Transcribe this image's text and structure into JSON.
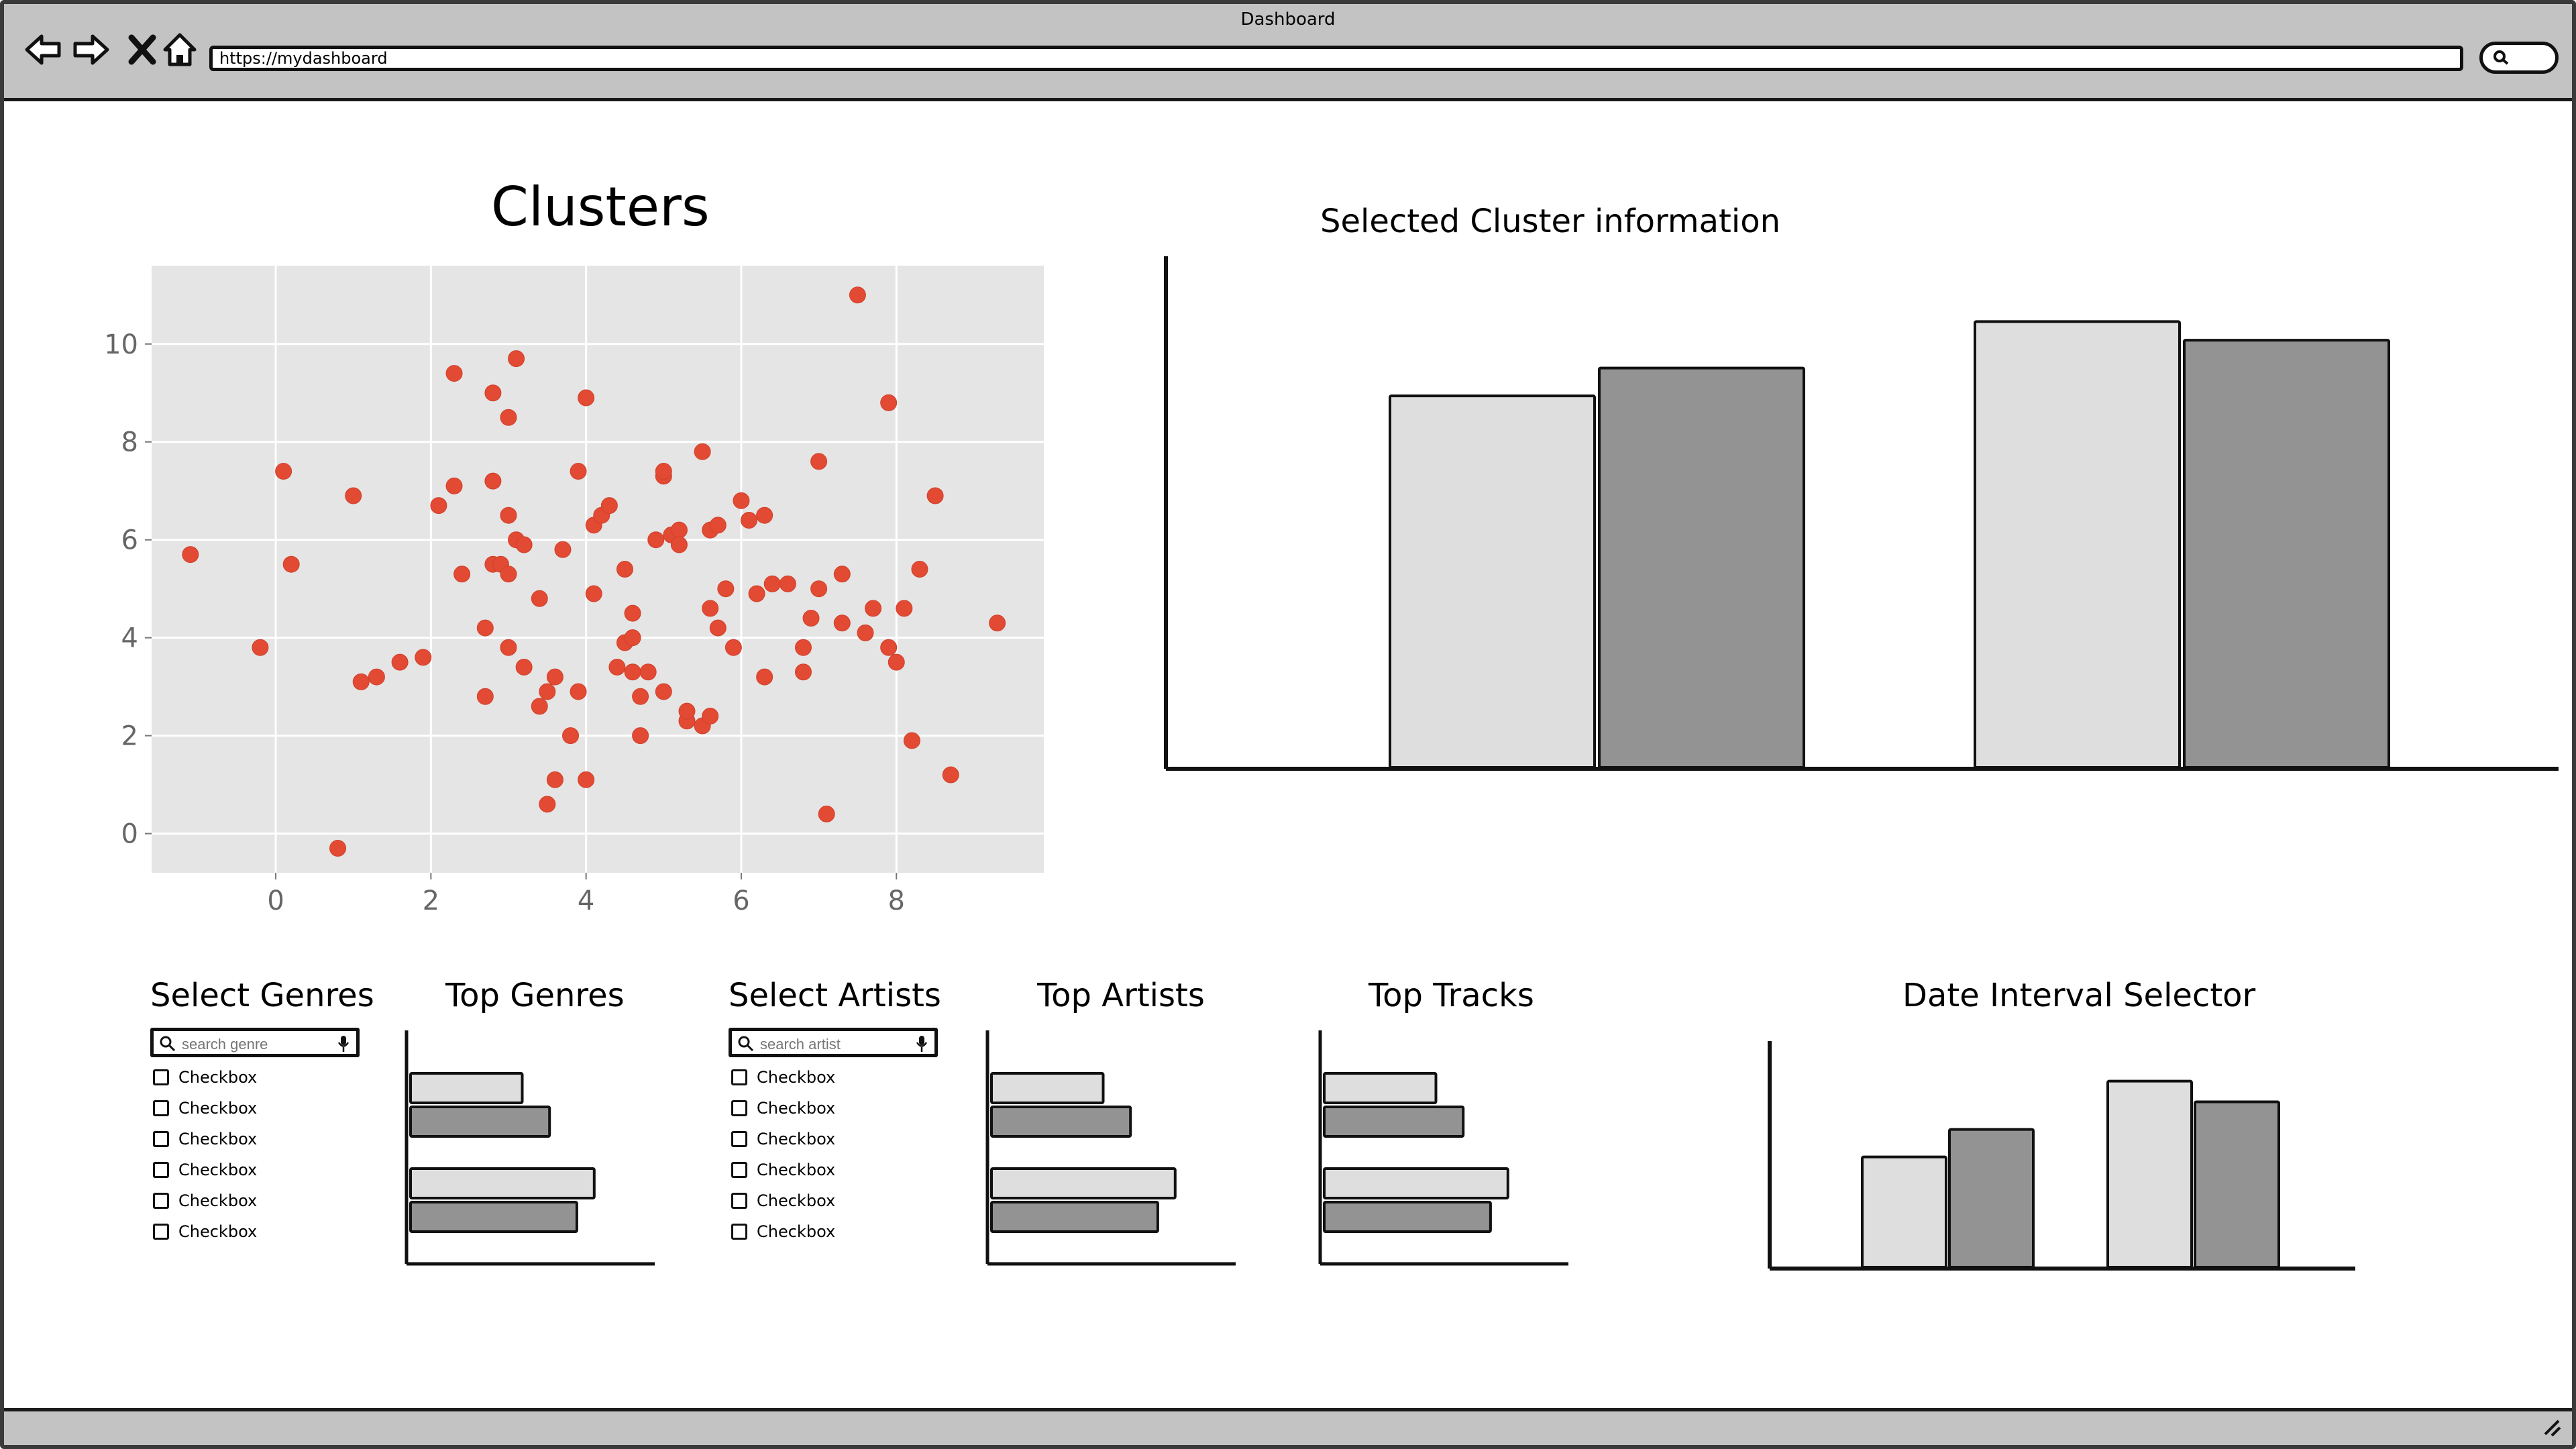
{
  "browser": {
    "window_title": "Dashboard",
    "url": "https://mydashboard",
    "icons": [
      "back-icon",
      "forward-icon",
      "close-icon",
      "home-icon",
      "search-icon",
      "resize-icon"
    ]
  },
  "clusters": {
    "title": "Clusters",
    "chart_data": {
      "type": "scatter",
      "x_ticks": [
        "0",
        "2",
        "4",
        "6",
        "8"
      ],
      "y_ticks": [
        "0",
        "2",
        "4",
        "6",
        "8",
        "10"
      ],
      "xlim": [
        -1.6,
        9.9
      ],
      "ylim": [
        -0.8,
        11.6
      ],
      "grid": true,
      "point_color": "#e24a33",
      "x": [
        -1.1,
        -0.2,
        0.1,
        0.2,
        1.0,
        0.8,
        1.1,
        1.3,
        1.6,
        1.9,
        2.1,
        2.3,
        2.3,
        2.4,
        2.7,
        2.7,
        2.8,
        2.8,
        2.8,
        2.9,
        3.0,
        3.0,
        3.0,
        3.0,
        3.1,
        3.1,
        3.2,
        3.2,
        3.4,
        3.4,
        3.5,
        3.5,
        3.6,
        3.6,
        3.7,
        3.8,
        3.9,
        3.9,
        4.0,
        4.0,
        4.1,
        4.1,
        4.2,
        4.3,
        4.4,
        4.5,
        4.5,
        4.6,
        4.6,
        4.6,
        4.7,
        4.7,
        4.8,
        4.9,
        5.0,
        5.0,
        5.0,
        5.1,
        5.2,
        5.2,
        5.3,
        5.3,
        5.5,
        5.5,
        5.6,
        5.6,
        5.6,
        5.7,
        5.7,
        5.8,
        5.9,
        6.0,
        6.1,
        6.2,
        6.3,
        6.3,
        6.4,
        6.6,
        6.8,
        6.8,
        6.9,
        7.0,
        7.0,
        7.1,
        7.3,
        7.3,
        7.5,
        7.6,
        7.7,
        7.9,
        7.9,
        8.0,
        8.1,
        8.2,
        8.3,
        8.5,
        8.7,
        9.3
      ],
      "y": [
        5.7,
        3.8,
        7.4,
        5.5,
        6.9,
        -0.3,
        3.1,
        3.2,
        3.5,
        3.6,
        6.7,
        7.1,
        9.4,
        5.3,
        4.2,
        2.8,
        7.2,
        5.5,
        9.0,
        5.5,
        8.5,
        6.5,
        5.3,
        3.8,
        6.0,
        9.7,
        3.4,
        5.9,
        4.8,
        2.6,
        0.6,
        2.9,
        3.2,
        1.1,
        5.8,
        2.0,
        7.4,
        2.9,
        8.9,
        1.1,
        4.9,
        6.3,
        6.5,
        6.7,
        3.4,
        3.9,
        5.4,
        3.3,
        4.5,
        4.0,
        2.0,
        2.8,
        3.3,
        6.0,
        7.3,
        7.4,
        2.9,
        6.1,
        6.2,
        5.9,
        2.3,
        2.5,
        2.2,
        7.8,
        2.4,
        6.2,
        4.6,
        4.2,
        6.3,
        5.0,
        3.8,
        6.8,
        6.4,
        4.9,
        3.2,
        6.5,
        5.1,
        5.1,
        3.3,
        3.8,
        4.4,
        5.0,
        7.6,
        0.4,
        4.3,
        5.3,
        11.0,
        4.1,
        4.6,
        8.8,
        3.8,
        3.5,
        4.6,
        1.9,
        5.4,
        6.9,
        1.2,
        4.3
      ]
    }
  },
  "cluster_info": {
    "title": "Selected Cluster information",
    "chart_data": {
      "type": "bar",
      "categories": [
        "",
        ""
      ],
      "series": [
        {
          "color": "#dedede",
          "values": [
            8.0,
            9.6
          ]
        },
        {
          "color": "#939393",
          "values": [
            8.6,
            9.2
          ]
        }
      ],
      "ylim": [
        0,
        10.4
      ]
    }
  },
  "genres": {
    "title": "Select Genres",
    "search_placeholder": "search genre",
    "checkboxes": [
      "Checkbox",
      "Checkbox",
      "Checkbox",
      "Checkbox",
      "Checkbox",
      "Checkbox"
    ]
  },
  "top_genres": {
    "title": "Top Genres",
    "chart_data": {
      "type": "bar",
      "orientation": "horizontal",
      "values": [
        45,
        56,
        74,
        67
      ],
      "colors": [
        "#dedede",
        "#939393",
        "#dedede",
        "#939393"
      ],
      "xlim": [
        0,
        100
      ]
    }
  },
  "artists": {
    "title": "Select Artists",
    "search_placeholder": "search artist",
    "checkboxes": [
      "Checkbox",
      "Checkbox",
      "Checkbox",
      "Checkbox",
      "Checkbox",
      "Checkbox"
    ]
  },
  "top_artists": {
    "title": "Top Artists",
    "chart_data": {
      "type": "bar",
      "orientation": "horizontal",
      "values": [
        45,
        56,
        74,
        67
      ],
      "colors": [
        "#dedede",
        "#939393",
        "#dedede",
        "#939393"
      ],
      "xlim": [
        0,
        100
      ]
    }
  },
  "top_tracks": {
    "title": "Top Tracks",
    "chart_data": {
      "type": "bar",
      "orientation": "horizontal",
      "values": [
        45,
        56,
        74,
        67
      ],
      "colors": [
        "#dedede",
        "#939393",
        "#dedede",
        "#939393"
      ],
      "xlim": [
        0,
        100
      ]
    }
  },
  "date_selector": {
    "title": "Date Interval Selector",
    "chart_data": {
      "type": "bar",
      "categories": [
        "",
        ""
      ],
      "series": [
        {
          "color": "#dedede",
          "values": [
            4.8,
            8.1
          ]
        },
        {
          "color": "#939393",
          "values": [
            6.0,
            7.2
          ]
        }
      ],
      "ylim": [
        0,
        9.2
      ]
    }
  }
}
